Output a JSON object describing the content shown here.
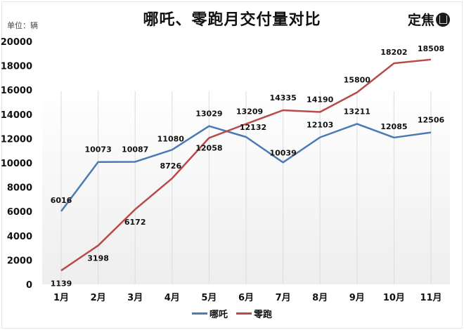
{
  "header": {
    "title": "哪吒、零跑月交付量对比",
    "unit": "单位：辆",
    "brand": "定焦"
  },
  "chart_data": {
    "type": "line",
    "title": "哪吒、零跑月交付量对比",
    "xlabel": "",
    "ylabel": "单位：辆",
    "categories": [
      "1月",
      "2月",
      "3月",
      "4月",
      "5月",
      "6月",
      "7月",
      "8月",
      "9月",
      "10月",
      "11月"
    ],
    "series": [
      {
        "name": "哪吒",
        "color": "#4a7ab3",
        "values": [
          6016,
          10073,
          10087,
          11080,
          13029,
          12132,
          10039,
          12103,
          13211,
          12085,
          12506
        ]
      },
      {
        "name": "零跑",
        "color": "#b84a4a",
        "values": [
          1139,
          3198,
          6172,
          8726,
          12058,
          13209,
          14335,
          14190,
          15800,
          18202,
          18508
        ]
      }
    ],
    "ylim": [
      0,
      20000
    ],
    "yticks": [
      0,
      2000,
      4000,
      6000,
      8000,
      10000,
      12000,
      14000,
      16000,
      18000,
      20000
    ],
    "grid": "vertical",
    "legend_position": "bottom"
  }
}
